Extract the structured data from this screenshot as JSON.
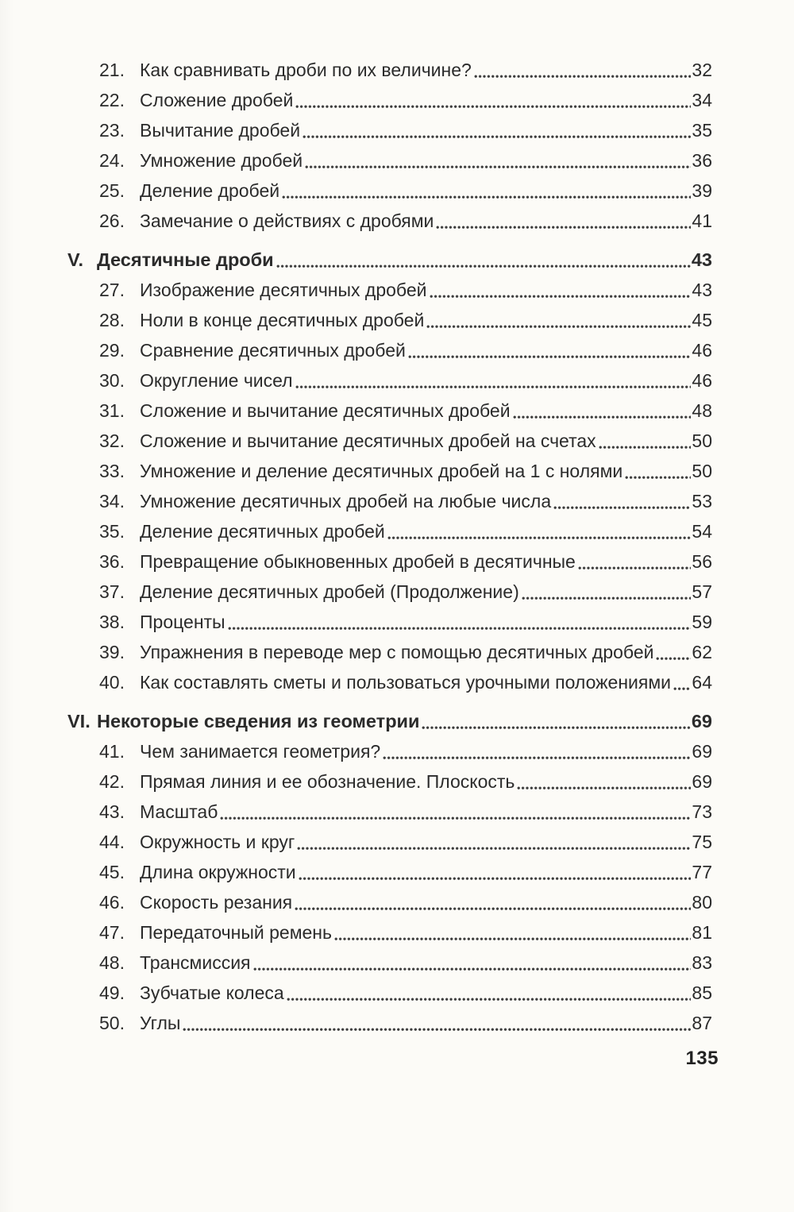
{
  "toc": {
    "entries": [
      {
        "type": "item",
        "num": "21.",
        "title": "Как сравнивать дроби по их величине?",
        "page": "32"
      },
      {
        "type": "item",
        "num": "22.",
        "title": "Сложение дробей",
        "page": "34"
      },
      {
        "type": "item",
        "num": "23.",
        "title": "Вычитание дробей",
        "page": "35"
      },
      {
        "type": "item",
        "num": "24.",
        "title": "Умножение дробей",
        "page": "36"
      },
      {
        "type": "item",
        "num": "25.",
        "title": "Деление дробей",
        "page": "39"
      },
      {
        "type": "item",
        "num": "26.",
        "title": "Замечание о действиях с дробями",
        "page": "41"
      },
      {
        "type": "section",
        "num": "V.",
        "title": "Десятичные дроби",
        "page": "43"
      },
      {
        "type": "item",
        "num": "27.",
        "title": "Изображение десятичных дробей",
        "page": "43"
      },
      {
        "type": "item",
        "num": "28.",
        "title": "Ноли в конце десятичных дробей",
        "page": "45"
      },
      {
        "type": "item",
        "num": "29.",
        "title": "Сравнение десятичных дробей",
        "page": "46"
      },
      {
        "type": "item",
        "num": "30.",
        "title": "Округление чисел",
        "page": "46"
      },
      {
        "type": "item",
        "num": "31.",
        "title": "Сложение и вычитание десятичных дробей",
        "page": "48"
      },
      {
        "type": "item",
        "num": "32.",
        "title": "Сложение и вычитание десятичных дробей на счетах",
        "page": "50"
      },
      {
        "type": "item",
        "num": "33.",
        "title": "Умножение и деление десятичных дробей на 1 с нолями",
        "page": "50"
      },
      {
        "type": "item",
        "num": "34.",
        "title": "Умножение десятичных дробей на любые числа",
        "page": "53"
      },
      {
        "type": "item",
        "num": "35.",
        "title": "Деление десятичных дробей",
        "page": "54"
      },
      {
        "type": "item",
        "num": "36.",
        "title": "Превращение обыкновенных дробей в десятичные",
        "page": "56"
      },
      {
        "type": "item",
        "num": "37.",
        "title": "Деление десятичных дробей (Продолжение)",
        "page": "57"
      },
      {
        "type": "item",
        "num": "38.",
        "title": "Проценты",
        "page": "59"
      },
      {
        "type": "item",
        "num": "39.",
        "title": "Упражнения в переводе мер с помощью десятичных дробей",
        "page": "62"
      },
      {
        "type": "item",
        "num": "40.",
        "title": "Как составлять сметы и пользоваться урочными положениями",
        "page": "64"
      },
      {
        "type": "section",
        "num": "VI.",
        "title": "Некоторые сведения из геометрии",
        "page": "69"
      },
      {
        "type": "item",
        "num": "41.",
        "title": "Чем занимается геометрия?",
        "page": "69"
      },
      {
        "type": "item",
        "num": "42.",
        "title": "Прямая линия и ее обозначение. Плоскость",
        "page": "69"
      },
      {
        "type": "item",
        "num": "43.",
        "title": "Масштаб",
        "page": "73"
      },
      {
        "type": "item",
        "num": "44.",
        "title": "Окружность и круг",
        "page": "75"
      },
      {
        "type": "item",
        "num": "45.",
        "title": "Длина окружности",
        "page": "77"
      },
      {
        "type": "item",
        "num": "46.",
        "title": "Скорость резания",
        "page": "80"
      },
      {
        "type": "item",
        "num": "47.",
        "title": "Передаточный ремень",
        "page": "81"
      },
      {
        "type": "item",
        "num": "48.",
        "title": "Трансмиссия",
        "page": "83"
      },
      {
        "type": "item",
        "num": "49.",
        "title": "Зубчатые колеса",
        "page": "85"
      },
      {
        "type": "item",
        "num": "50.",
        "title": "Углы",
        "page": "87"
      }
    ]
  },
  "footer": {
    "page_number": "135"
  }
}
